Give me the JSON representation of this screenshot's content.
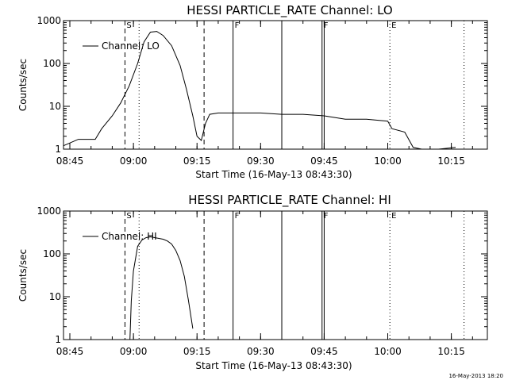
{
  "footer": {
    "timestamp": "16-May-2013 18:20"
  },
  "chart_data": [
    {
      "type": "line",
      "title": "HESSI PARTICLE_RATE Channel: LO",
      "xlabel": "Start Time (16-May-13 08:43:30)",
      "ylabel": "Counts/sec",
      "yscale": "log",
      "ylim": [
        1,
        1000
      ],
      "xlim": [
        "08:43:30",
        "10:23:30"
      ],
      "xticks": [
        "08:45",
        "09:00",
        "09:15",
        "09:30",
        "09:45",
        "10:00",
        "10:15"
      ],
      "yticks": [
        "1",
        "10",
        "100",
        "1000"
      ],
      "legend": {
        "label": "Channel: LO",
        "position": "top-left"
      },
      "markers": [
        {
          "label": "S",
          "time": "08:58:00",
          "style": "dashed"
        },
        {
          "label": "",
          "time": "09:01:20",
          "style": "dotted"
        },
        {
          "label": "",
          "time": "09:16:40",
          "style": "dashed"
        },
        {
          "label": "F",
          "time": "09:23:30",
          "style": "solid"
        },
        {
          "label": "",
          "time": "09:35:00",
          "style": "solid"
        },
        {
          "label": "F",
          "time": "09:44:30",
          "style": "solid"
        },
        {
          "label": "",
          "time": "09:45:00",
          "style": "solid"
        },
        {
          "label": "E",
          "time": "10:00:30",
          "style": "dotted"
        },
        {
          "label": "",
          "time": "10:18:00",
          "style": "dotted"
        }
      ],
      "series": [
        {
          "name": "Channel: LO",
          "x": [
            "08:43:30",
            "08:47:00",
            "08:51:00",
            "08:52:30",
            "08:55:00",
            "08:57:00",
            "08:59:00",
            "09:01:00",
            "09:02:30",
            "09:04:00",
            "09:05:30",
            "09:07:00",
            "09:09:00",
            "09:11:00",
            "09:12:30",
            "09:14:00",
            "09:15:00",
            "09:16:00",
            "09:17:00",
            "09:18:00",
            "09:20:00",
            "09:25:00",
            "09:30:00",
            "09:35:00",
            "09:40:00",
            "09:45:00",
            "09:50:00",
            "09:55:00",
            "10:00:00",
            "10:01:00",
            "10:04:00",
            "10:06:00",
            "10:08:00",
            "10:12:00",
            "10:16:00"
          ],
          "y": [
            1.2,
            1.7,
            1.7,
            3,
            6,
            12,
            30,
            100,
            320,
            540,
            560,
            450,
            260,
            90,
            25,
            6,
            2,
            1.6,
            4,
            6.5,
            7,
            7,
            7,
            6.5,
            6.5,
            6,
            5,
            5,
            4.5,
            3,
            2.5,
            1.1,
            1,
            1,
            1.1
          ]
        }
      ]
    },
    {
      "type": "line",
      "title": "HESSI PARTICLE_RATE Channel: HI",
      "xlabel": "Start Time (16-May-13 08:43:30)",
      "ylabel": "Counts/sec",
      "yscale": "log",
      "ylim": [
        1,
        1000
      ],
      "xlim": [
        "08:43:30",
        "10:23:30"
      ],
      "xticks": [
        "08:45",
        "09:00",
        "09:15",
        "09:30",
        "09:45",
        "10:00",
        "10:15"
      ],
      "yticks": [
        "1",
        "10",
        "100",
        "1000"
      ],
      "legend": {
        "label": "Channel: HI",
        "position": "top-left"
      },
      "markers": [
        {
          "label": "S",
          "time": "08:58:00",
          "style": "dashed"
        },
        {
          "label": "",
          "time": "09:01:20",
          "style": "dotted"
        },
        {
          "label": "",
          "time": "09:16:40",
          "style": "dashed"
        },
        {
          "label": "F",
          "time": "09:23:30",
          "style": "solid"
        },
        {
          "label": "",
          "time": "09:35:00",
          "style": "solid"
        },
        {
          "label": "F",
          "time": "09:44:30",
          "style": "solid"
        },
        {
          "label": "",
          "time": "09:45:00",
          "style": "solid"
        },
        {
          "label": "E",
          "time": "10:00:30",
          "style": "dotted"
        },
        {
          "label": "",
          "time": "10:18:00",
          "style": "dotted"
        }
      ],
      "series": [
        {
          "name": "Channel: HI",
          "x": [
            "08:59:10",
            "08:59:30",
            "09:00:00",
            "09:01:00",
            "09:02:00",
            "09:03:00",
            "09:04:00",
            "09:05:00",
            "09:06:00",
            "09:07:00",
            "09:08:00",
            "09:09:00",
            "09:10:00",
            "09:11:00",
            "09:12:00",
            "09:13:00",
            "09:14:00"
          ],
          "y": [
            1,
            8,
            40,
            150,
            210,
            240,
            250,
            240,
            230,
            220,
            200,
            170,
            120,
            70,
            30,
            8,
            1.8
          ]
        }
      ]
    }
  ]
}
